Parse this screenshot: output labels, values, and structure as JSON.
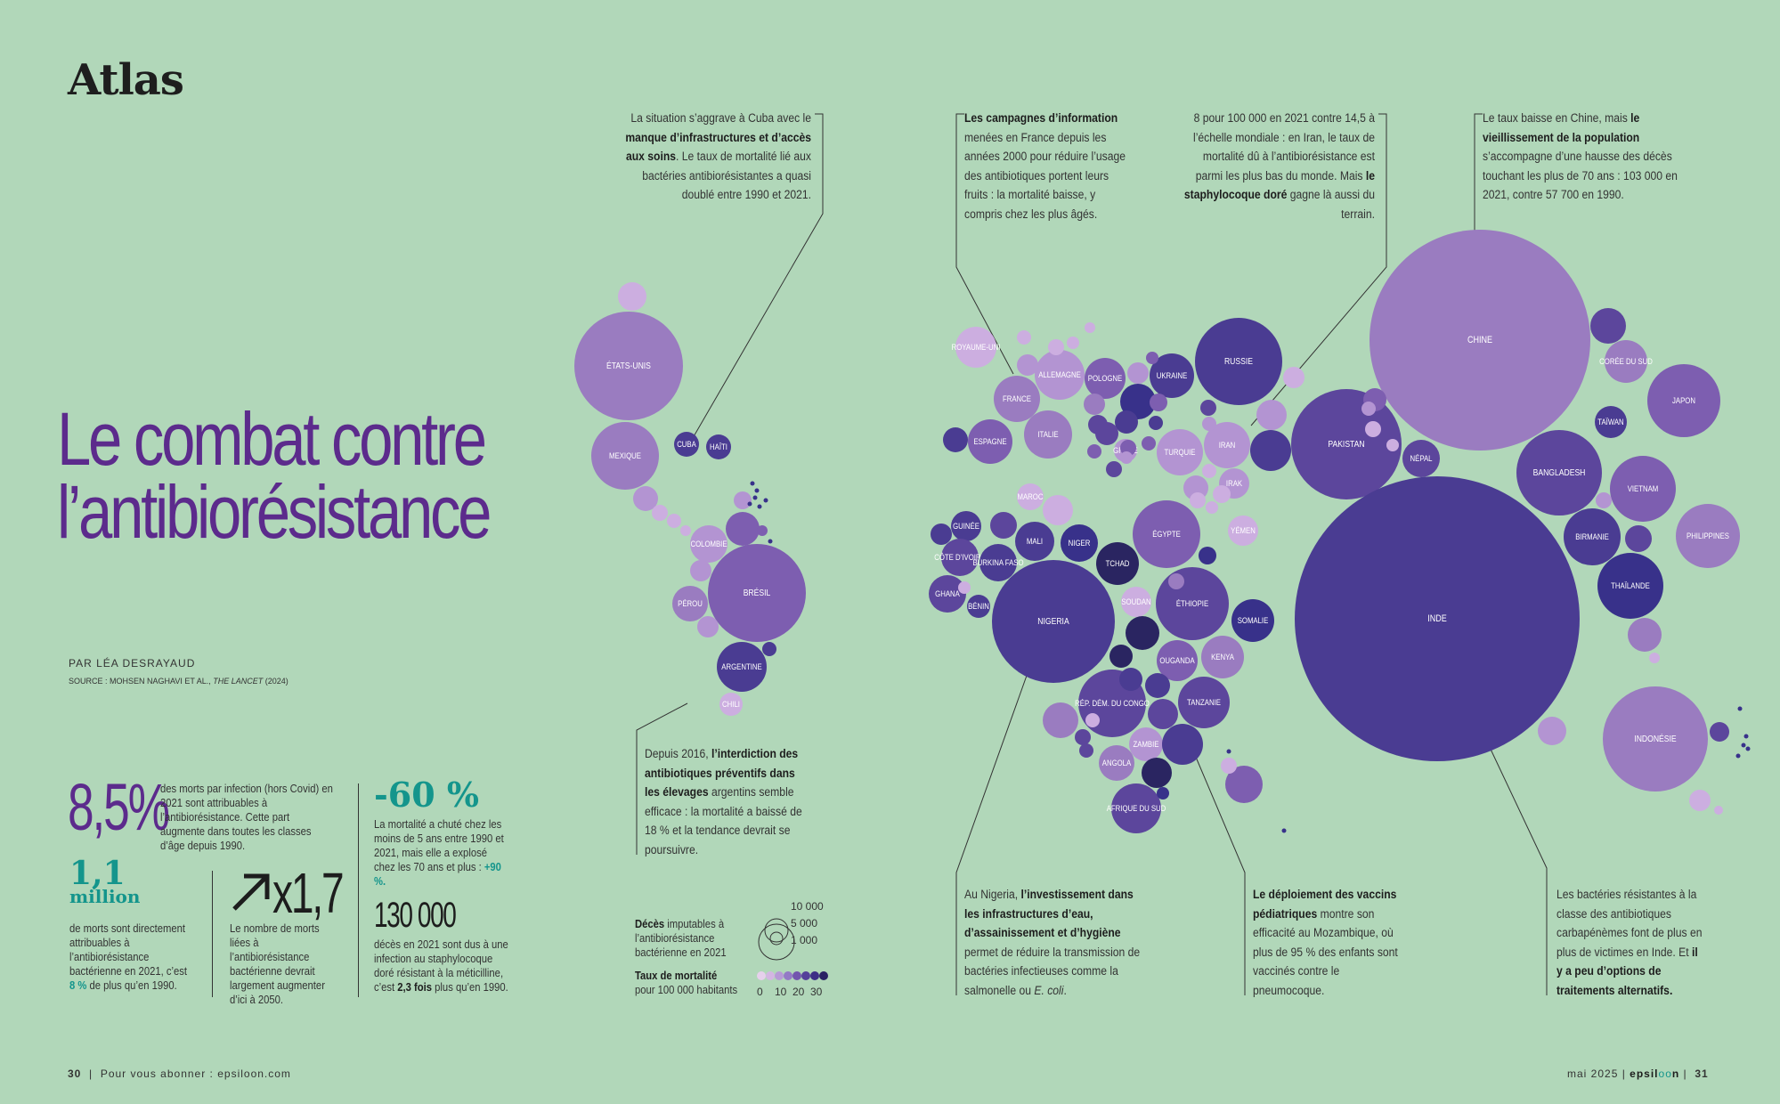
{
  "header": {
    "section": "Atlas"
  },
  "title": {
    "line1": "Le combat contre",
    "line2": "l’antibiorésistance"
  },
  "byline": "PAR LÉA DESRAYAUD",
  "source": {
    "label": "SOURCE : MOHSEN NAGHAVI ET AL., ",
    "journal": "THE LANCET",
    "year": " (2024)"
  },
  "stats": {
    "s1_value": "8,5%",
    "s1_text": "des morts par infection (hors Covid) en 2021 sont attribuables à l’antibiorésistance. Cette part augmente dans toutes les classes d’âge depuis 1990.",
    "s2_value": "-60 %",
    "s2_text": "La mortalité a chuté chez les moins de 5 ans entre 1990 et 2021, mais elle a explosé chez les 70 ans et plus :",
    "s2_highlight": "+90 %.",
    "s3_value": "1,1",
    "s3_unit": "million",
    "s3_text": "de morts sont directement attribuables à l’antibiorésistance bactérienne en 2021, c’est",
    "s3_highlight": "8 %",
    "s3_text2": "de plus qu’en 1990.",
    "s4_value": "x1,7",
    "s4_text": "Le nombre de morts liées à l’antibiorésistance bactérienne devrait largement augmenter d’ici à 2050.",
    "s5_value": "130 000",
    "s5_text": "décès en 2021 sont dus à une infection au staphylocoque doré résistant à la méticilline, c’est",
    "s5_bold": "2,3 fois",
    "s5_text2": "plus qu’en 1990."
  },
  "annotations": {
    "cuba": {
      "t1": "La situation s’aggrave à Cuba avec le ",
      "b1": "manque d’infrastructures et d’accès aux soins",
      "t2": ". Le taux de mortalité lié aux bactéries antibiorésistantes a quasi doublé entre 1990 et 2021."
    },
    "france": {
      "b1": "Les campagnes d’information",
      "t1": " menées en France depuis les années 2000 pour réduire l’usage des antibiotiques portent leurs fruits : la mortalité baisse, y compris chez les plus âgés."
    },
    "iran": {
      "t1": "8 pour 100 000 en 2021 contre 14,5 à l’échelle mondiale : en Iran, le taux de mortalité dû à l’antibiorésistance est parmi les plus bas du monde. Mais ",
      "b1": "le staphylocoque doré",
      "t2": " gagne là aussi du terrain."
    },
    "chine": {
      "t1": "Le taux baisse en Chine, mais ",
      "b1": "le vieillissement de la population",
      "t2": " s’accompagne d’une hausse des décès touchant les plus de 70 ans : 103 000 en 2021, contre 57 700 en 1990."
    },
    "bresil": {
      "t1": "Depuis 2016, ",
      "b1": "l’interdiction des antibiotiques préventifs dans les élevages",
      "t2": " argentins semble efficace : la mortalité a baissé de 18 % et la tendance devrait se poursuivre."
    },
    "nigeria": {
      "t1": "Au Nigeria, ",
      "b1": "l’investissement dans les infrastructures d’eau, d’assainissement et d’hygiène",
      "t2": " permet de réduire la transmission de bactéries infectieuses comme la salmonelle ou ",
      "i1": "E. coli",
      "t3": "."
    },
    "mozambique": {
      "b1": "Le déploiement des vaccins pédiatriques",
      "t1": " montre son efficacité au Mozambique, où plus de 95 % des enfants sont vaccinés contre le pneumocoque."
    },
    "inde": {
      "t1": "Les bactéries résistantes à la classe des antibiotiques carbapénèmes font de plus en plus de victimes en Inde. Et ",
      "b1": "il y a peu d’options de traitements alternatifs."
    }
  },
  "legend": {
    "size_bold": "Décès",
    "size_text": " imputables à l’antibiorésistance bactérienne en 2021",
    "sizes": [
      "10 000",
      "5 000",
      "1 000"
    ],
    "rate_bold": "Taux de mortalité",
    "rate_text": "pour 100 000 habitants",
    "ticks": [
      "0",
      "10",
      "20",
      "30"
    ],
    "colors": [
      "#e6d0ec",
      "#d3b6e2",
      "#b79ad6",
      "#9479c6",
      "#7356ae",
      "#55409a",
      "#3d2f86",
      "#2a2164"
    ]
  },
  "footer": {
    "left_page": "30",
    "left_text": "Pour vous abonner : epsiloon.com",
    "right_text": "mai  2025 ",
    "brand_a": "epsil",
    "brand_b": "oo",
    "brand_c": "n",
    "right_page": "31"
  },
  "chart_data": {
    "type": "bubble",
    "size_measure": "Décès imputables à l’antibiorésistance bactérienne en 2021",
    "color_measure": "Taux de mortalité pour 100 000 habitants",
    "labels": [
      "ÉTATS-UNIS",
      "MEXIQUE",
      "CUBA",
      "HAÏTI",
      "COLOMBIE",
      "BRÉSIL",
      "PÉROU",
      "ARGENTINE",
      "CHILI",
      "ROYAUME-UNI",
      "ALLEMAGNE",
      "POLOGNE",
      "UKRAINE",
      "RUSSIE",
      "FRANCE",
      "ESPAGNE",
      "ITALIE",
      "GRÈCE",
      "TURQUIE",
      "IRAN",
      "IRAK",
      "YÉMEN",
      "MAROC",
      "GUINÉE",
      "MALI",
      "NIGER",
      "CÔTE D’IVOIRE",
      "BURKINA FASO",
      "GHANA",
      "BÉNIN",
      "TCHAD",
      "ÉGYPTE",
      "NIGERIA",
      "SOUDAN",
      "ÉTHIOPIE",
      "SOMALIE",
      "OUGANDA",
      "KENYA",
      "RÉP. DÉM. DU CONGO",
      "TANZANIE",
      "ZAMBIE",
      "ANGOLA",
      "AFRIQUE DU SUD",
      "CHINE",
      "PAKISTAN",
      "NÉPAL",
      "INDE",
      "CORÉE DU SUD",
      "JAPON",
      "TAÏWAN",
      "BANGLADESH",
      "VIETNAM",
      "BIRMANIE",
      "PHILIPPINES",
      "THAÏLANDE",
      "INDONÉSIE"
    ],
    "size_scale_ticks": [
      10000,
      5000,
      1000
    ],
    "color_scale_ticks": [
      0,
      10,
      20,
      30
    ]
  }
}
